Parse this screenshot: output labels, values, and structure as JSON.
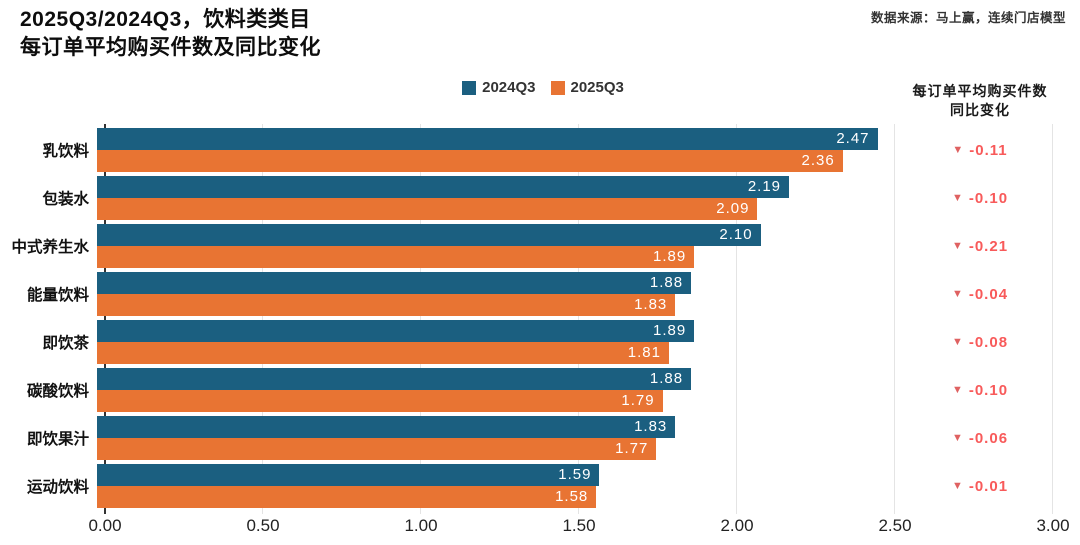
{
  "title": {
    "line1": "2025Q3/2024Q3，饮料类类目",
    "line2": "每订单平均购买件数及同比变化"
  },
  "source": "数据来源：马上赢，连续门店模型",
  "change_header": {
    "line1": "每订单平均购买件数",
    "line2": "同比变化"
  },
  "colors": {
    "series_2024q3": "#1b5f80",
    "series_2025q3": "#e87433",
    "change_text": "#f85a5a",
    "change_triangle": "#df6161",
    "gridline": "#e4e4e4",
    "axis_line": "#333333"
  },
  "chart_data": {
    "type": "bar",
    "orientation": "horizontal",
    "title": "2025Q3/2024Q3，饮料类类目 每订单平均购买件数及同比变化",
    "categories": [
      "乳饮料",
      "包装水",
      "中式养生水",
      "能量饮料",
      "即饮茶",
      "碳酸饮料",
      "即饮果汁",
      "运动饮料"
    ],
    "series": [
      {
        "name": "2024Q3",
        "color": "#1b5f80",
        "values": [
          2.47,
          2.19,
          2.1,
          1.88,
          1.89,
          1.88,
          1.83,
          1.59
        ]
      },
      {
        "name": "2025Q3",
        "color": "#e87433",
        "values": [
          2.36,
          2.09,
          1.89,
          1.83,
          1.81,
          1.79,
          1.77,
          1.58
        ]
      }
    ],
    "yoy_change": [
      -0.11,
      -0.1,
      -0.21,
      -0.04,
      -0.08,
      -0.1,
      -0.06,
      -0.01
    ],
    "xlim": [
      0,
      3
    ],
    "xticks": [
      "0.00",
      "0.50",
      "1.00",
      "1.50",
      "2.00",
      "2.50",
      "3.00"
    ],
    "grid": true,
    "legend_position": "top"
  }
}
